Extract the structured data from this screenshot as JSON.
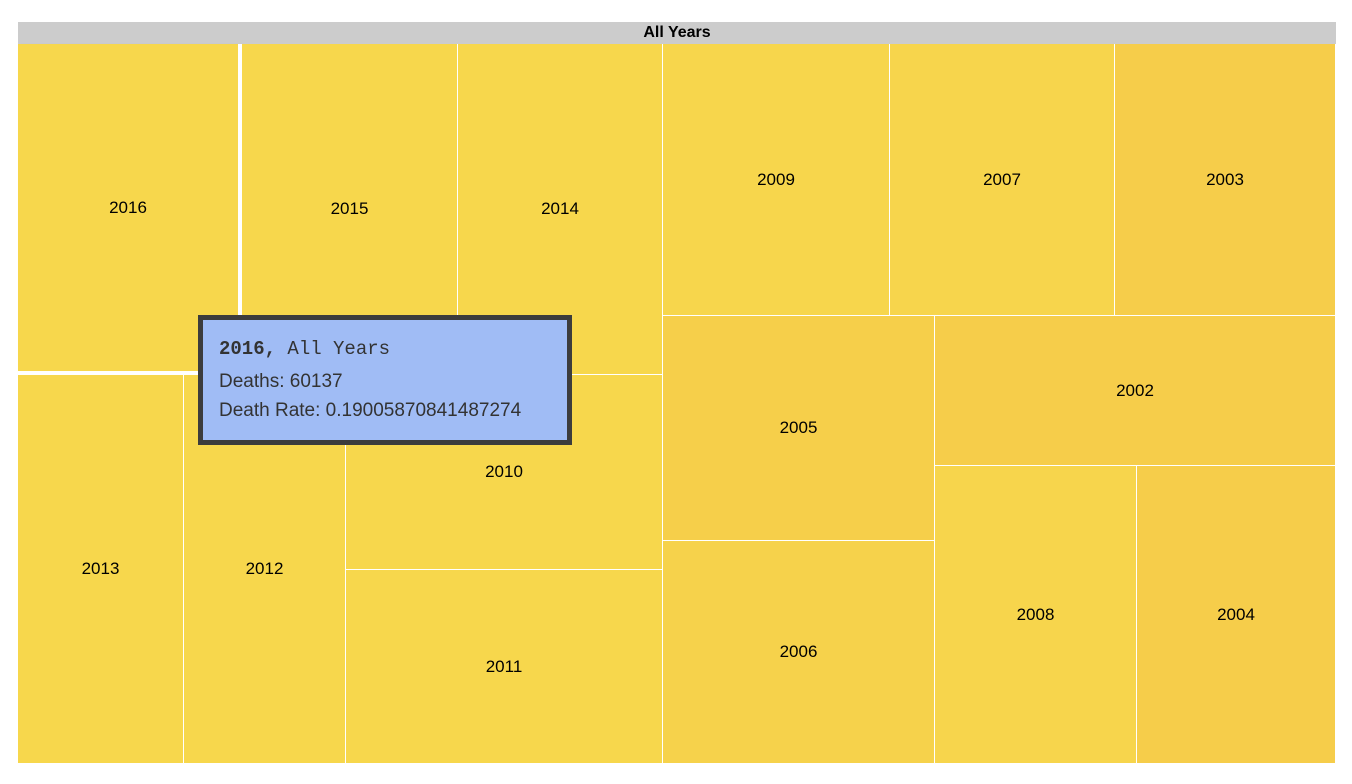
{
  "chart_data": {
    "type": "treemap",
    "title": "All Years",
    "tiles": [
      {
        "label": "2016",
        "color": "#f7d74c"
      },
      {
        "label": "2015",
        "color": "#f7d74c"
      },
      {
        "label": "2014",
        "color": "#f7d74c"
      },
      {
        "label": "2013",
        "color": "#f7d74c"
      },
      {
        "label": "2012",
        "color": "#f7d74c"
      },
      {
        "label": "2010",
        "color": "#f7d74c"
      },
      {
        "label": "2011",
        "color": "#f7d74c"
      },
      {
        "label": "2009",
        "color": "#f7d64c"
      },
      {
        "label": "2007",
        "color": "#f7d54c"
      },
      {
        "label": "2003",
        "color": "#f6cd4a"
      },
      {
        "label": "2005",
        "color": "#f6cf4a"
      },
      {
        "label": "2002",
        "color": "#f6cd4a"
      },
      {
        "label": "2006",
        "color": "#f6d24b"
      },
      {
        "label": "2008",
        "color": "#f7d54c"
      },
      {
        "label": "2004",
        "color": "#f6cd4a"
      }
    ],
    "tooltip": {
      "year": "2016,",
      "group": "All Years",
      "deaths_label": "Deaths: 60137",
      "rate_label": "Death Rate: 0.19005870841487274"
    }
  },
  "colors": {
    "header_bg": "#cccccc",
    "tooltip_bg": "#a0bcf5",
    "tooltip_border": "#3c3c3c"
  }
}
